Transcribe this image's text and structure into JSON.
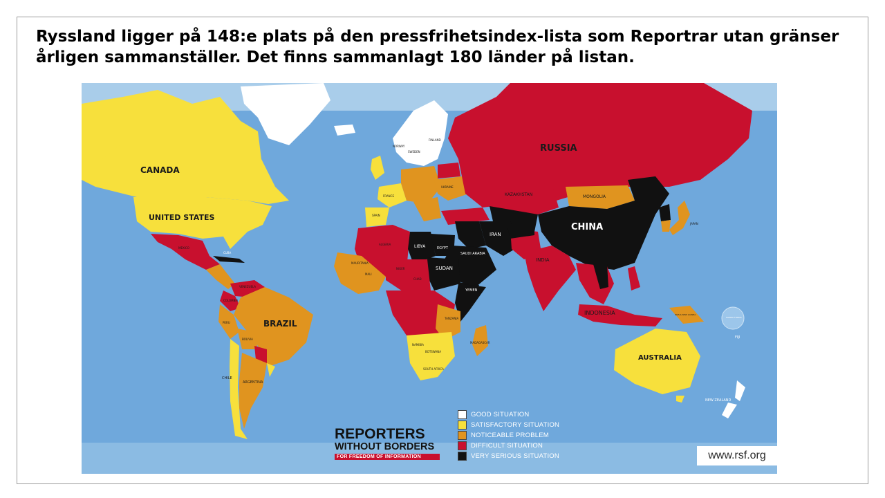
{
  "slide": {
    "title": "Ryssland ligger på 148:e plats på den pressfrihetsindex-lista som Reportrar utan gränser årligen sammanställer. Det finns sammanlagt 180 länder på listan."
  },
  "colors": {
    "ocean": "#6fa8dc",
    "ocean_light": "#a9cdea",
    "good": "#ffffff",
    "satisfactory": "#f7e03c",
    "noticeable": "#e0941f",
    "difficult": "#c8102e",
    "very_serious": "#111111"
  },
  "map": {
    "labels": {
      "canada": "CANADA",
      "united_states": "UNITED STATES",
      "russia": "RUSSIA",
      "china": "CHINA",
      "brazil": "BRAZIL",
      "australia": "AUSTRALIA",
      "mongolia": "MONGOLIA",
      "kazakhstan": "KAZAKHSTAN",
      "iran": "IRAN",
      "india": "INDIA",
      "indonesia": "INDONESIA",
      "libya": "LIBYA",
      "egypt": "EGYPT",
      "saudi_arabia": "SAUDI ARABIA",
      "sudan": "SUDAN",
      "yemen": "YEMEN",
      "argentina": "ARGENTINA",
      "chile": "CHILE",
      "bolivia": "BOLIVIA",
      "peru": "PERU",
      "new_zealand": "NEW ZEALAND",
      "fiji": "FIJI",
      "papua_new_guinea": "PAPUA NEW GUINEA",
      "iceland": "ICELAND",
      "norway": "NORWAY",
      "sweden": "SWEDEN",
      "finland": "FINLAND",
      "ukraine": "UKRAINE",
      "france": "FRANCE",
      "spain": "SPAIN",
      "cuba": "CUBA",
      "japan": "JAPAN",
      "madagascar": "MADAGASCAR",
      "south_africa": "SOUTH AFRICA",
      "namibia": "NAMIBIA",
      "botswana": "BOTSWANA",
      "tanzania": "TANZANIA",
      "mauritania": "MAURITANIA",
      "niger": "NIGER",
      "chad": "CHAD",
      "mali": "MALI",
      "algeria": "ALGERIA",
      "mexico": "MEXICO",
      "colombia": "COLOMBIA",
      "venezuela": "VENEZUELA",
      "samoa_tonga": "SAMOA TONGA"
    }
  },
  "legend": [
    {
      "label": "GOOD SITUATION",
      "color": "#ffffff"
    },
    {
      "label": "SATISFACTORY SITUATION",
      "color": "#f7e03c"
    },
    {
      "label": "NOTICEABLE PROBLEM",
      "color": "#e0941f"
    },
    {
      "label": "DIFFICULT SITUATION",
      "color": "#c8102e"
    },
    {
      "label": "VERY SERIOUS SITUATION",
      "color": "#111111"
    }
  ],
  "logo": {
    "line1": "REPORTERS",
    "line2": "WITHOUT BORDERS",
    "tagline": "FOR FREEDOM OF INFORMATION"
  },
  "source_url": "www.rsf.org"
}
